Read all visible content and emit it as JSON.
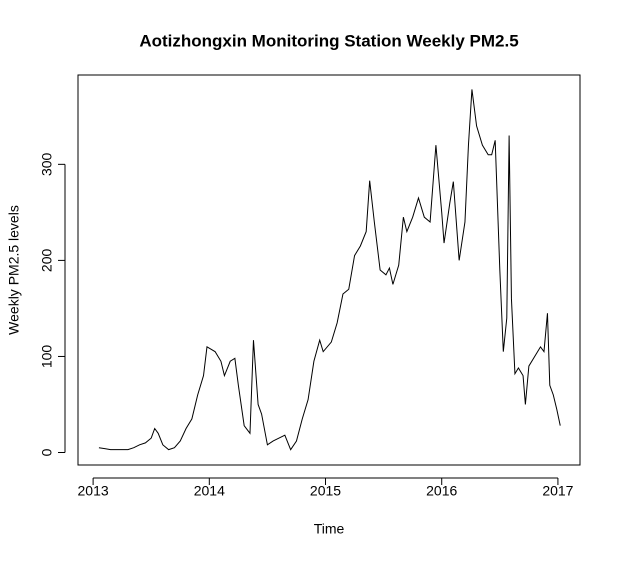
{
  "chart_data": {
    "type": "line",
    "title": "Aotizhongxin Monitoring Station Weekly PM2.5",
    "x_label": "Time",
    "y_label": "Weekly PM2.5 levels",
    "x": [
      2013.05,
      2013.1,
      2013.15,
      2013.2,
      2013.3,
      2013.35,
      2013.4,
      2013.45,
      2013.5,
      2013.53,
      2013.56,
      2013.6,
      2013.65,
      2013.7,
      2013.75,
      2013.8,
      2013.85,
      2013.9,
      2013.95,
      2013.98,
      2014.05,
      2014.1,
      2014.13,
      2014.18,
      2014.22,
      2014.25,
      2014.3,
      2014.35,
      2014.38,
      2014.42,
      2014.45,
      2014.5,
      2014.55,
      2014.6,
      2014.65,
      2014.7,
      2014.75,
      2014.8,
      2014.85,
      2014.9,
      2014.95,
      2014.98,
      2015.05,
      2015.1,
      2015.15,
      2015.2,
      2015.25,
      2015.3,
      2015.35,
      2015.38,
      2015.42,
      2015.47,
      2015.52,
      2015.55,
      2015.58,
      2015.63,
      2015.67,
      2015.7,
      2015.75,
      2015.8,
      2015.85,
      2015.9,
      2015.95,
      2016.0,
      2016.02,
      2016.07,
      2016.1,
      2016.15,
      2016.2,
      2016.23,
      2016.26,
      2016.3,
      2016.35,
      2016.4,
      2016.43,
      2016.46,
      2016.5,
      2016.53,
      2016.56,
      2016.58,
      2016.6,
      2016.63,
      2016.66,
      2016.7,
      2016.72,
      2016.75,
      2016.8,
      2016.85,
      2016.88,
      2016.91,
      2016.93,
      2016.96,
      2016.99,
      2017.02
    ],
    "values": [
      5,
      4,
      3,
      3,
      3,
      5,
      8,
      10,
      15,
      25,
      20,
      8,
      3,
      5,
      12,
      25,
      35,
      60,
      80,
      110,
      105,
      95,
      80,
      95,
      98,
      70,
      28,
      20,
      117,
      50,
      40,
      8,
      12,
      15,
      18,
      3,
      12,
      35,
      55,
      95,
      117,
      105,
      115,
      135,
      165,
      170,
      205,
      215,
      230,
      283,
      240,
      190,
      185,
      192,
      175,
      195,
      245,
      230,
      245,
      265,
      245,
      240,
      320,
      250,
      218,
      260,
      282,
      200,
      240,
      320,
      378,
      340,
      320,
      310,
      310,
      325,
      190,
      105,
      140,
      330,
      160,
      82,
      88,
      80,
      50,
      90,
      100,
      110,
      105,
      145,
      70,
      60,
      45,
      28
    ],
    "color": "#000000",
    "xlim": [
      2012.87,
      2017.19
    ],
    "ylim": [
      -13,
      393
    ],
    "xticks": [
      2013,
      2014,
      2015,
      2016,
      2017
    ],
    "yticks": [
      0,
      100,
      200,
      300
    ]
  }
}
